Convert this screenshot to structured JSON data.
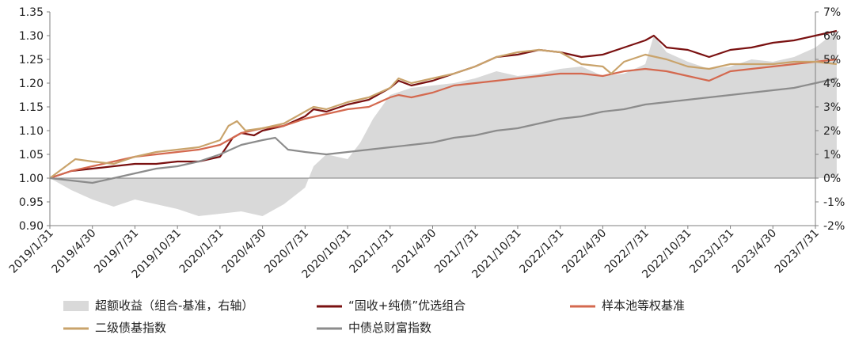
{
  "chart_data": {
    "type": "line",
    "title": "",
    "xlabel": "",
    "ylabel": "",
    "x_ticks": [
      "2019/1/31",
      "2019/4/30",
      "2019/7/31",
      "2019/10/31",
      "2020/1/31",
      "2020/4/30",
      "2020/7/31",
      "2020/10/31",
      "2021/1/31",
      "2021/4/30",
      "2021/7/31",
      "2021/10/31",
      "2022/1/31",
      "2022/4/30",
      "2022/7/31",
      "2022/10/31",
      "2023/1/31",
      "2023/4/30",
      "2023/7/31"
    ],
    "y_left": {
      "range": [
        0.9,
        1.35
      ],
      "ticks": [
        "0.90",
        "0.95",
        "1.00",
        "1.05",
        "1.10",
        "1.15",
        "1.20",
        "1.25",
        "1.30",
        "1.35"
      ]
    },
    "y_right": {
      "range": [
        -2,
        7
      ],
      "ticks": [
        "-2%",
        "-1%",
        "0%",
        "1%",
        "2%",
        "3%",
        "4%",
        "5%",
        "6%",
        "7%"
      ]
    },
    "legend_position": "bottom",
    "series": [
      {
        "name": "超额收益（组合-基准，右轴）",
        "kind": "area",
        "axis": "right",
        "color": "#d9d9d9",
        "points": [
          [
            0,
            0
          ],
          [
            0.5,
            -0.5
          ],
          [
            1,
            -0.9
          ],
          [
            1.5,
            -1.2
          ],
          [
            2,
            -0.9
          ],
          [
            2.5,
            -1.1
          ],
          [
            3,
            -1.3
          ],
          [
            3.5,
            -1.6
          ],
          [
            4,
            -1.5
          ],
          [
            4.5,
            -1.4
          ],
          [
            5,
            -1.6
          ],
          [
            5.5,
            -1.1
          ],
          [
            6,
            -0.4
          ],
          [
            6.2,
            0.5
          ],
          [
            6.5,
            1.0
          ],
          [
            7,
            0.8
          ],
          [
            7.3,
            1.5
          ],
          [
            7.6,
            2.5
          ],
          [
            8,
            3.5
          ],
          [
            8.5,
            3.8
          ],
          [
            9,
            3.9
          ],
          [
            9.5,
            4.0
          ],
          [
            10,
            4.2
          ],
          [
            10.5,
            4.5
          ],
          [
            11,
            4.3
          ],
          [
            11.5,
            4.4
          ],
          [
            12,
            4.6
          ],
          [
            12.5,
            4.7
          ],
          [
            13,
            4.3
          ],
          [
            13.5,
            4.4
          ],
          [
            14,
            4.8
          ],
          [
            14.2,
            6.0
          ],
          [
            14.5,
            5.3
          ],
          [
            15,
            4.9
          ],
          [
            15.5,
            4.6
          ],
          [
            16,
            4.7
          ],
          [
            16.5,
            5.0
          ],
          [
            17,
            4.9
          ],
          [
            17.5,
            5.1
          ],
          [
            18,
            5.5
          ],
          [
            18.5,
            6.2
          ]
        ]
      },
      {
        "name": "“固收+纯债”优选组合",
        "kind": "line",
        "axis": "left",
        "color": "#7a1111",
        "points": [
          [
            0,
            1.0
          ],
          [
            0.5,
            1.015
          ],
          [
            1,
            1.02
          ],
          [
            1.5,
            1.025
          ],
          [
            2,
            1.03
          ],
          [
            2.5,
            1.03
          ],
          [
            3,
            1.035
          ],
          [
            3.5,
            1.035
          ],
          [
            4,
            1.045
          ],
          [
            4.3,
            1.085
          ],
          [
            4.5,
            1.095
          ],
          [
            4.8,
            1.09
          ],
          [
            5,
            1.1
          ],
          [
            5.5,
            1.11
          ],
          [
            6,
            1.13
          ],
          [
            6.2,
            1.145
          ],
          [
            6.5,
            1.14
          ],
          [
            7,
            1.155
          ],
          [
            7.5,
            1.165
          ],
          [
            8,
            1.19
          ],
          [
            8.2,
            1.205
          ],
          [
            8.5,
            1.195
          ],
          [
            9,
            1.205
          ],
          [
            9.5,
            1.22
          ],
          [
            10,
            1.235
          ],
          [
            10.5,
            1.255
          ],
          [
            11,
            1.26
          ],
          [
            11.5,
            1.27
          ],
          [
            12,
            1.265
          ],
          [
            12.5,
            1.255
          ],
          [
            13,
            1.26
          ],
          [
            13.5,
            1.275
          ],
          [
            14,
            1.29
          ],
          [
            14.2,
            1.3
          ],
          [
            14.5,
            1.275
          ],
          [
            15,
            1.27
          ],
          [
            15.5,
            1.255
          ],
          [
            16,
            1.27
          ],
          [
            16.5,
            1.275
          ],
          [
            17,
            1.285
          ],
          [
            17.5,
            1.29
          ],
          [
            18,
            1.3
          ],
          [
            18.5,
            1.31
          ]
        ]
      },
      {
        "name": "样本池等权基准",
        "kind": "line",
        "axis": "left",
        "color": "#d4694f",
        "points": [
          [
            0,
            1.0
          ],
          [
            0.5,
            1.015
          ],
          [
            1,
            1.025
          ],
          [
            1.5,
            1.035
          ],
          [
            2,
            1.045
          ],
          [
            2.5,
            1.05
          ],
          [
            3,
            1.055
          ],
          [
            3.5,
            1.06
          ],
          [
            4,
            1.07
          ],
          [
            4.3,
            1.085
          ],
          [
            4.5,
            1.095
          ],
          [
            5,
            1.105
          ],
          [
            5.5,
            1.11
          ],
          [
            6,
            1.125
          ],
          [
            6.5,
            1.135
          ],
          [
            7,
            1.145
          ],
          [
            7.5,
            1.15
          ],
          [
            8,
            1.17
          ],
          [
            8.2,
            1.175
          ],
          [
            8.5,
            1.17
          ],
          [
            9,
            1.18
          ],
          [
            9.5,
            1.195
          ],
          [
            10,
            1.2
          ],
          [
            10.5,
            1.205
          ],
          [
            11,
            1.21
          ],
          [
            11.5,
            1.215
          ],
          [
            12,
            1.22
          ],
          [
            12.5,
            1.22
          ],
          [
            13,
            1.215
          ],
          [
            13.5,
            1.225
          ],
          [
            14,
            1.23
          ],
          [
            14.5,
            1.225
          ],
          [
            15,
            1.215
          ],
          [
            15.5,
            1.205
          ],
          [
            16,
            1.225
          ],
          [
            16.5,
            1.23
          ],
          [
            17,
            1.235
          ],
          [
            17.5,
            1.24
          ],
          [
            18,
            1.245
          ],
          [
            18.5,
            1.25
          ]
        ]
      },
      {
        "name": "二级债基指数",
        "kind": "line",
        "axis": "left",
        "color": "#c9a36b",
        "points": [
          [
            0,
            1.0
          ],
          [
            0.3,
            1.02
          ],
          [
            0.6,
            1.04
          ],
          [
            1,
            1.035
          ],
          [
            1.5,
            1.03
          ],
          [
            2,
            1.045
          ],
          [
            2.5,
            1.055
          ],
          [
            3,
            1.06
          ],
          [
            3.5,
            1.065
          ],
          [
            4,
            1.08
          ],
          [
            4.2,
            1.11
          ],
          [
            4.4,
            1.12
          ],
          [
            4.6,
            1.1
          ],
          [
            5,
            1.105
          ],
          [
            5.5,
            1.115
          ],
          [
            6,
            1.14
          ],
          [
            6.2,
            1.15
          ],
          [
            6.5,
            1.145
          ],
          [
            7,
            1.16
          ],
          [
            7.5,
            1.17
          ],
          [
            8,
            1.19
          ],
          [
            8.2,
            1.21
          ],
          [
            8.5,
            1.2
          ],
          [
            9,
            1.21
          ],
          [
            9.5,
            1.22
          ],
          [
            10,
            1.235
          ],
          [
            10.5,
            1.255
          ],
          [
            11,
            1.265
          ],
          [
            11.5,
            1.27
          ],
          [
            12,
            1.265
          ],
          [
            12.5,
            1.24
          ],
          [
            13,
            1.235
          ],
          [
            13.2,
            1.22
          ],
          [
            13.5,
            1.245
          ],
          [
            14,
            1.26
          ],
          [
            14.5,
            1.25
          ],
          [
            15,
            1.235
          ],
          [
            15.5,
            1.23
          ],
          [
            16,
            1.24
          ],
          [
            16.5,
            1.24
          ],
          [
            17,
            1.24
          ],
          [
            17.5,
            1.245
          ],
          [
            18,
            1.245
          ],
          [
            18.5,
            1.24
          ]
        ]
      },
      {
        "name": "中债总财富指数",
        "kind": "line",
        "axis": "left",
        "color": "#8c8c8c",
        "points": [
          [
            0,
            1.0
          ],
          [
            0.5,
            0.995
          ],
          [
            1,
            0.99
          ],
          [
            1.5,
            1.0
          ],
          [
            2,
            1.01
          ],
          [
            2.5,
            1.02
          ],
          [
            3,
            1.025
          ],
          [
            3.5,
            1.035
          ],
          [
            4,
            1.05
          ],
          [
            4.5,
            1.07
          ],
          [
            5,
            1.08
          ],
          [
            5.3,
            1.085
          ],
          [
            5.6,
            1.06
          ],
          [
            6,
            1.055
          ],
          [
            6.5,
            1.05
          ],
          [
            7,
            1.055
          ],
          [
            7.5,
            1.06
          ],
          [
            8,
            1.065
          ],
          [
            8.5,
            1.07
          ],
          [
            9,
            1.075
          ],
          [
            9.5,
            1.085
          ],
          [
            10,
            1.09
          ],
          [
            10.5,
            1.1
          ],
          [
            11,
            1.105
          ],
          [
            11.5,
            1.115
          ],
          [
            12,
            1.125
          ],
          [
            12.5,
            1.13
          ],
          [
            13,
            1.14
          ],
          [
            13.5,
            1.145
          ],
          [
            14,
            1.155
          ],
          [
            14.5,
            1.16
          ],
          [
            15,
            1.165
          ],
          [
            15.5,
            1.17
          ],
          [
            16,
            1.175
          ],
          [
            16.5,
            1.18
          ],
          [
            17,
            1.185
          ],
          [
            17.5,
            1.19
          ],
          [
            18,
            1.2
          ],
          [
            18.5,
            1.21
          ]
        ]
      }
    ]
  }
}
